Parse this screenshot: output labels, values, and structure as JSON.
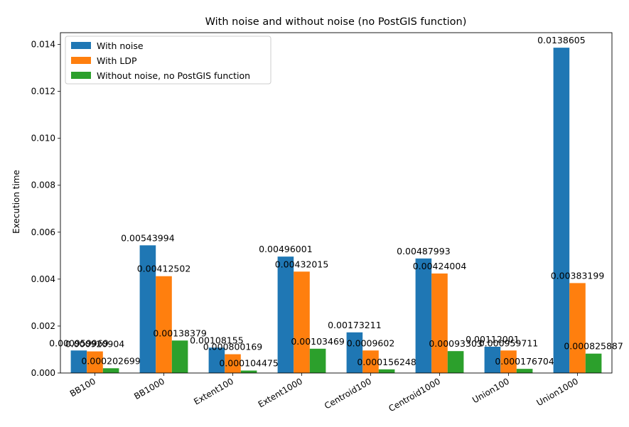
{
  "chart_data": {
    "type": "bar",
    "title": "With noise and without noise (no PostGIS function)",
    "xlabel": "",
    "ylabel": "Execution time",
    "ylim": [
      0,
      0.0145
    ],
    "yticks": [
      0.0,
      0.002,
      0.004,
      0.006,
      0.008,
      0.01,
      0.012,
      0.014
    ],
    "ytick_labels": [
      "0.000",
      "0.002",
      "0.004",
      "0.006",
      "0.008",
      "0.010",
      "0.012",
      "0.014"
    ],
    "categories": [
      "BB100",
      "BB1000",
      "Extent100",
      "Extent1000",
      "Centroid100",
      "Centroid1000",
      "Union100",
      "Union1000"
    ],
    "legend_position": "top-left",
    "series": [
      {
        "name": "With noise",
        "color": "#1f77b4",
        "values": [
          0.000959969,
          0.00543994,
          0.00108155,
          0.00496001,
          0.00173211,
          0.00487993,
          0.00112001,
          0.0138605
        ],
        "labels": [
          "0.000959969",
          "0.00543994",
          "0.00108155",
          "0.00496001",
          "0.00173211",
          "0.00487993",
          "0.00112001",
          "0.0138605"
        ]
      },
      {
        "name": "With LDP",
        "color": "#ff7f0e",
        "values": [
          0.000920904,
          0.00412502,
          0.000800169,
          0.00432015,
          0.0009602,
          0.00424004,
          0.000959711,
          0.00383199
        ],
        "labels": [
          "0.000920904",
          "0.00412502",
          "0.000800169",
          "0.00432015",
          "0.0009602",
          "0.00424004",
          "0.000959711",
          "0.00383199"
        ]
      },
      {
        "name": "Without noise, no PostGIS function",
        "color": "#2ca02c",
        "values": [
          0.000202699,
          0.00138379,
          0.000104475,
          0.00103469,
          0.000156248,
          0.00093303,
          0.000176704,
          0.000825887
        ],
        "labels": [
          "0.000202699",
          "0.00138379",
          "0.000104475",
          "0.00103469",
          "0.000156248",
          "0.00093303",
          "0.000176704",
          "0.000825887"
        ]
      }
    ]
  }
}
